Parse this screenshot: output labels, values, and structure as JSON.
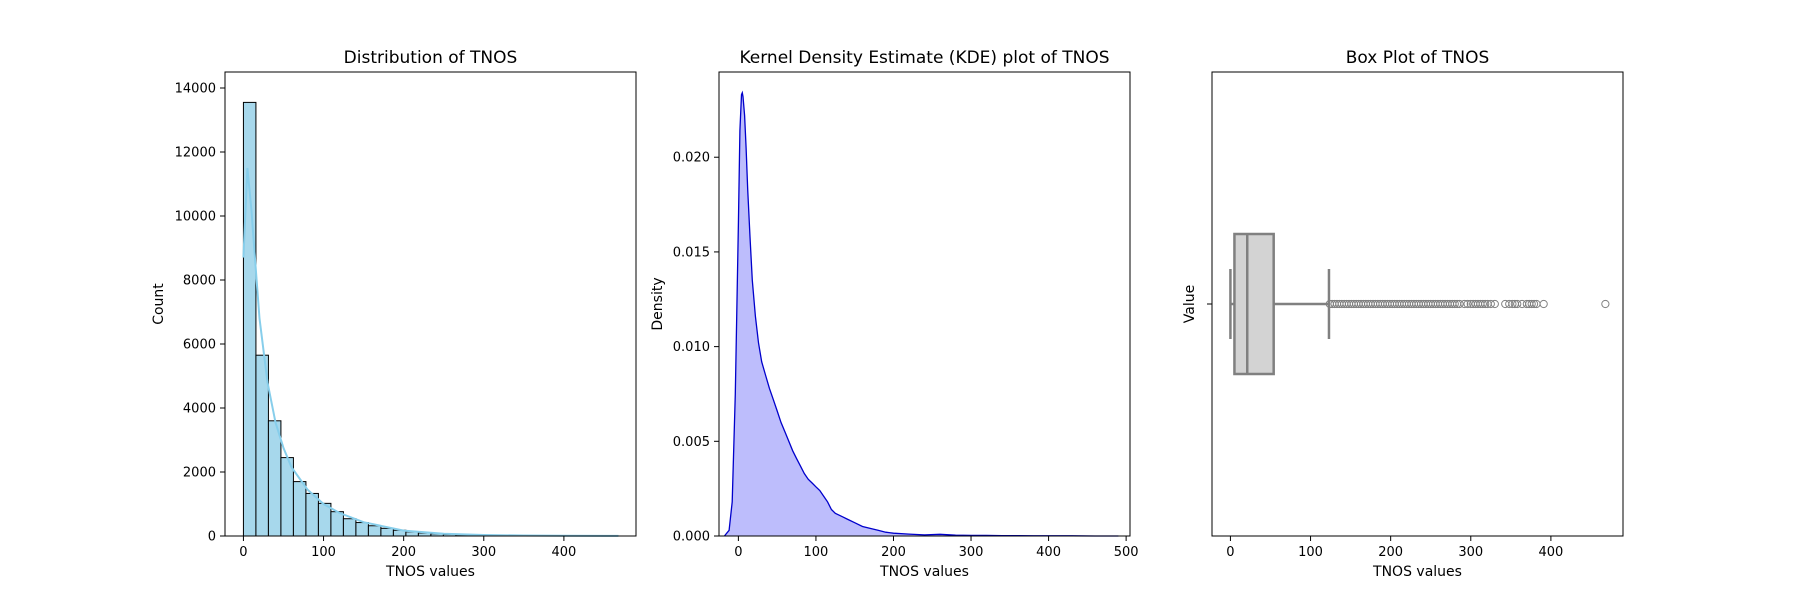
{
  "colors": {
    "hist_fill": "#a7d8ec",
    "hist_edge": "#000000",
    "hist_kde_line": "#87ceeb",
    "kde_fill": "#bdbdfc",
    "kde_line": "#0000cc",
    "box_fill": "#d3d3d3",
    "box_edge": "#808080"
  },
  "chart_data": [
    {
      "type": "bar",
      "title": "Distribution of TNOS",
      "xlabel": "TNOS values",
      "ylabel": "Count",
      "xlim": [
        -23,
        490
      ],
      "ylim": [
        0,
        14500
      ],
      "xticks": [
        0,
        100,
        200,
        300,
        400
      ],
      "yticks": [
        0,
        2000,
        4000,
        6000,
        8000,
        10000,
        12000,
        14000
      ],
      "bin_width": 15.6,
      "bin_start": 0,
      "values": [
        13550,
        5650,
        3600,
        2450,
        1700,
        1330,
        1020,
        760,
        540,
        420,
        320,
        240,
        180,
        130,
        95,
        70,
        50,
        38,
        28,
        20,
        15,
        11,
        8,
        6,
        5,
        4,
        3,
        2,
        1,
        1
      ],
      "kde_overlay": {
        "x": [
          0,
          5,
          10,
          15,
          20,
          30,
          40,
          50,
          60,
          80,
          100,
          120,
          150,
          200,
          250,
          300,
          350,
          400,
          450,
          468
        ],
        "y": [
          8700,
          11500,
          10200,
          8500,
          6800,
          4800,
          3550,
          2750,
          2150,
          1450,
          1000,
          720,
          430,
          170,
          70,
          32,
          15,
          8,
          3,
          2
        ]
      }
    },
    {
      "type": "area",
      "title": "Kernel Density Estimate (KDE) plot of TNOS",
      "xlabel": "TNOS values",
      "ylabel": "Density",
      "xlim": [
        -25,
        505
      ],
      "ylim": [
        0,
        0.0245
      ],
      "xticks": [
        0,
        100,
        200,
        300,
        400,
        500
      ],
      "yticks": [
        0.0,
        0.005,
        0.01,
        0.015,
        0.02
      ],
      "ytick_labels": [
        "0.000",
        "0.005",
        "0.010",
        "0.015",
        "0.020"
      ],
      "x": [
        -18,
        -12,
        -8,
        -4,
        0,
        2,
        4,
        5,
        6,
        8,
        10,
        12,
        15,
        18,
        22,
        26,
        30,
        35,
        40,
        45,
        50,
        55,
        60,
        65,
        70,
        75,
        80,
        85,
        90,
        95,
        100,
        105,
        110,
        115,
        120,
        125,
        130,
        135,
        140,
        150,
        160,
        170,
        180,
        190,
        200,
        220,
        240,
        260,
        280,
        300,
        320,
        340,
        360,
        380,
        400,
        430,
        460,
        490
      ],
      "y": [
        0,
        0.0003,
        0.0018,
        0.0075,
        0.0165,
        0.0214,
        0.0233,
        0.0234,
        0.0232,
        0.0222,
        0.0205,
        0.0183,
        0.0158,
        0.0135,
        0.0116,
        0.0102,
        0.0092,
        0.0085,
        0.0078,
        0.0072,
        0.0066,
        0.006,
        0.0055,
        0.005,
        0.0045,
        0.0041,
        0.0037,
        0.0033,
        0.003,
        0.0028,
        0.0026,
        0.0024,
        0.0021,
        0.0018,
        0.0014,
        0.0012,
        0.0011,
        0.001,
        0.0009,
        0.0007,
        0.0005,
        0.0004,
        0.0003,
        0.0002,
        0.00015,
        0.0001,
        6e-05,
        9e-05,
        4e-05,
        3e-05,
        3e-05,
        2e-05,
        2e-05,
        1e-05,
        1e-05,
        1e-05,
        0,
        0
      ]
    },
    {
      "type": "box",
      "title": "Box Plot of TNOS",
      "xlabel": "TNOS values",
      "ylabel": "Value",
      "xlim": [
        -23,
        490
      ],
      "xticks": [
        0,
        100,
        200,
        300,
        400
      ],
      "whisker_low": 0,
      "q1": 5,
      "median": 21,
      "q3": 54,
      "whisker_high": 123,
      "outliers": [
        124,
        127,
        130,
        133,
        136,
        139,
        142,
        145,
        148,
        151,
        154,
        157,
        160,
        163,
        166,
        169,
        172,
        175,
        178,
        181,
        184,
        187,
        190,
        193,
        196,
        199,
        202,
        205,
        208,
        211,
        214,
        217,
        220,
        223,
        226,
        229,
        232,
        235,
        238,
        241,
        244,
        247,
        250,
        253,
        256,
        259,
        262,
        265,
        268,
        271,
        274,
        277,
        280,
        283,
        286,
        292,
        296,
        300,
        303,
        306,
        309,
        312,
        315,
        318,
        321,
        325,
        330,
        343,
        348,
        352,
        355,
        358,
        364,
        370,
        373,
        376,
        379,
        382,
        391,
        468
      ]
    }
  ]
}
